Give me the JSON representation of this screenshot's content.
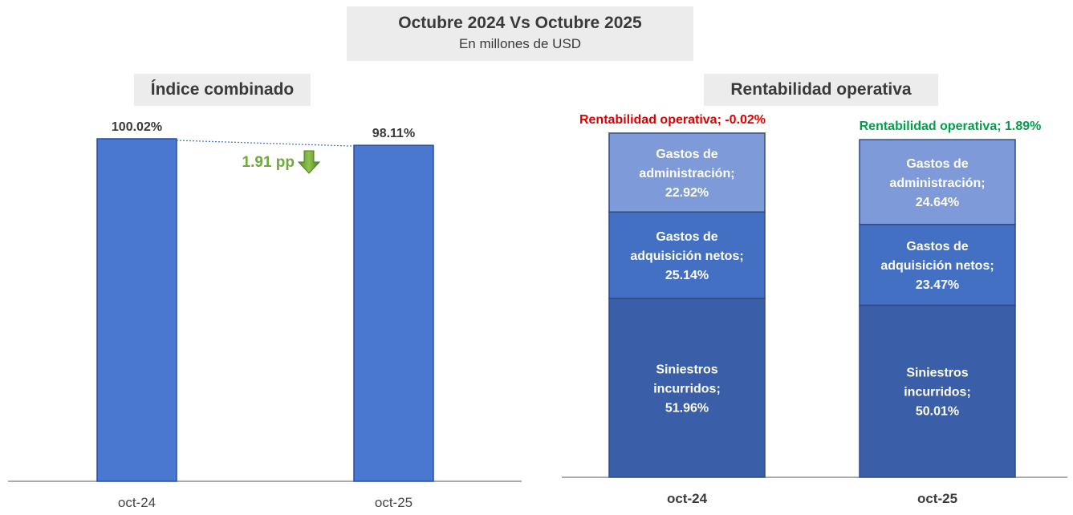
{
  "header": {
    "title": "Octubre 2024 Vs Octubre 2025",
    "subtitle": "En millones de USD"
  },
  "colors": {
    "bar_blue": "#4a78d0",
    "segment_top": "#7f9ad9",
    "segment_mid": "#4470c4",
    "segment_bottom": "#3a5ea8",
    "negative_label": "#e00000",
    "positive_label": "#00a04a",
    "delta_green": "#70a83c"
  },
  "chart_data": [
    {
      "type": "bar",
      "title": "Índice combinado",
      "categories": [
        "oct-24",
        "oct-25"
      ],
      "values": [
        100.02,
        98.11
      ],
      "data_labels": [
        "100.02%",
        "98.11%"
      ],
      "ylim": [
        0,
        105
      ],
      "annotation": {
        "text": "1.91 pp",
        "icon": "arrow-down-icon"
      },
      "grid": false
    },
    {
      "type": "bar",
      "stacked": true,
      "title": "Rentabilidad operativa",
      "categories": [
        "oct-24",
        "oct-25"
      ],
      "series": [
        {
          "name_lines": [
            "Siniestros",
            "incurridos;"
          ],
          "values": [
            51.96,
            50.01
          ],
          "data_labels": [
            "51.96%",
            "50.01%"
          ]
        },
        {
          "name_lines": [
            "Gastos de",
            "adquisición netos;"
          ],
          "values": [
            25.14,
            23.47
          ],
          "data_labels": [
            "25.14%",
            "23.47%"
          ]
        },
        {
          "name_lines": [
            "Gastos de",
            "administración;"
          ],
          "values": [
            22.92,
            24.64
          ],
          "data_labels": [
            "22.92%",
            "24.64%"
          ]
        }
      ],
      "totals_labels": [
        "Rentabilidad operativa; -0.02%",
        "Rentabilidad operativa; 1.89%"
      ],
      "ylim": [
        0,
        100
      ],
      "grid": false
    }
  ]
}
